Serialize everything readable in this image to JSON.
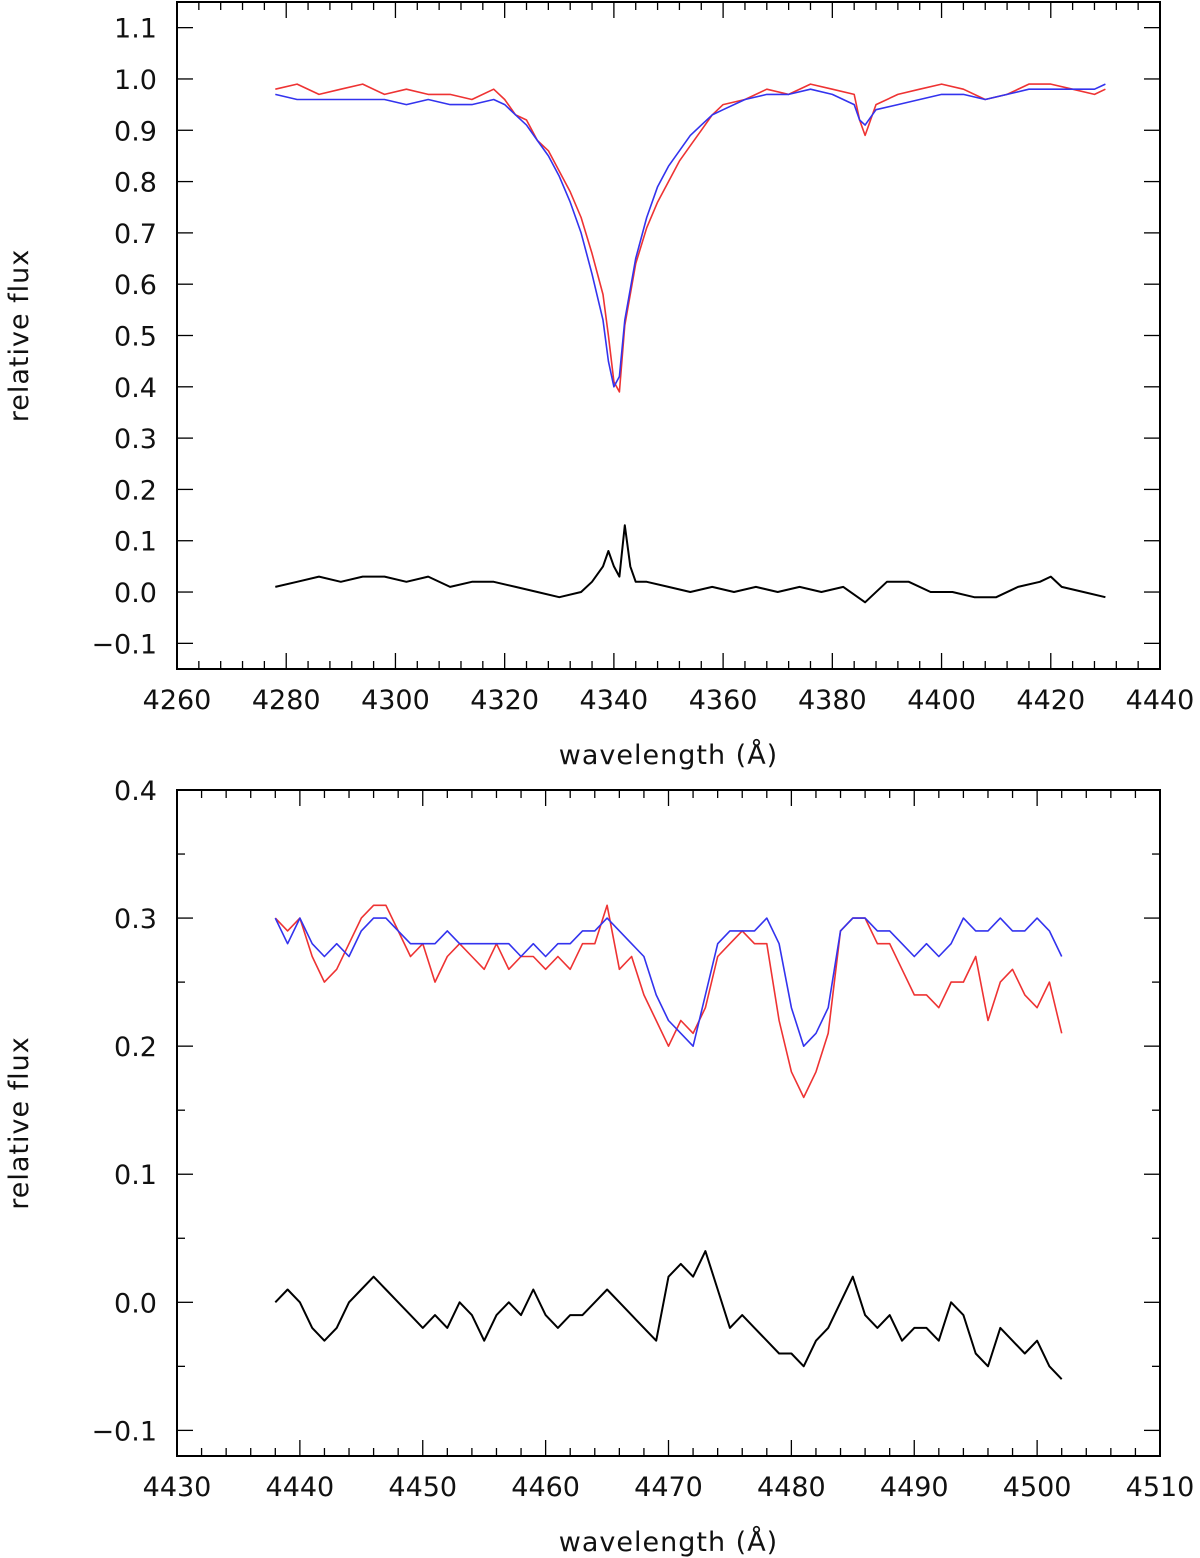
{
  "chart_data": [
    {
      "type": "line",
      "xlabel": "wavelength (Å)",
      "ylabel": "relative flux",
      "xlim": [
        4260,
        4440
      ],
      "ylim": [
        -0.15,
        1.15
      ],
      "xticks": [
        4260,
        4280,
        4300,
        4320,
        4340,
        4360,
        4380,
        4400,
        4420,
        4440
      ],
      "yticks": [
        -0.1,
        0.0,
        0.1,
        0.2,
        0.3,
        0.4,
        0.5,
        0.6,
        0.7,
        0.8,
        0.9,
        1.0,
        1.1
      ],
      "xtick_labels": [
        "4260",
        "4280",
        "4300",
        "4320",
        "4340",
        "4360",
        "4380",
        "4400",
        "4420",
        "4440"
      ],
      "ytick_labels": [
        "−0.1",
        "0.0",
        "0.1",
        "0.2",
        "0.3",
        "0.4",
        "0.5",
        "0.6",
        "0.7",
        "0.8",
        "0.9",
        "1.0",
        "1.1"
      ],
      "grid": false,
      "series": [
        {
          "color": "#ee3333",
          "x": [
            4278,
            4282,
            4286,
            4290,
            4294,
            4298,
            4302,
            4306,
            4310,
            4314,
            4318,
            4320,
            4322,
            4324,
            4326,
            4328,
            4330,
            4332,
            4334,
            4336,
            4338,
            4339,
            4340,
            4341,
            4342,
            4344,
            4346,
            4348,
            4350,
            4352,
            4354,
            4356,
            4358,
            4360,
            4364,
            4368,
            4372,
            4376,
            4380,
            4384,
            4385,
            4386,
            4388,
            4392,
            4396,
            4400,
            4404,
            4408,
            4412,
            4416,
            4420,
            4424,
            4428,
            4430
          ],
          "y": [
            0.98,
            0.99,
            0.97,
            0.98,
            0.99,
            0.97,
            0.98,
            0.97,
            0.97,
            0.96,
            0.98,
            0.96,
            0.93,
            0.92,
            0.88,
            0.86,
            0.82,
            0.78,
            0.73,
            0.66,
            0.58,
            0.5,
            0.41,
            0.39,
            0.52,
            0.64,
            0.71,
            0.76,
            0.8,
            0.84,
            0.87,
            0.9,
            0.93,
            0.95,
            0.96,
            0.98,
            0.97,
            0.99,
            0.98,
            0.97,
            0.92,
            0.89,
            0.95,
            0.97,
            0.98,
            0.99,
            0.98,
            0.96,
            0.97,
            0.99,
            0.99,
            0.98,
            0.97,
            0.98
          ]
        },
        {
          "color": "#3333ee",
          "x": [
            4278,
            4282,
            4286,
            4290,
            4294,
            4298,
            4302,
            4306,
            4310,
            4314,
            4318,
            4320,
            4322,
            4324,
            4326,
            4328,
            4330,
            4332,
            4334,
            4336,
            4338,
            4339,
            4340,
            4341,
            4342,
            4344,
            4346,
            4348,
            4350,
            4352,
            4354,
            4356,
            4358,
            4360,
            4364,
            4368,
            4372,
            4376,
            4380,
            4384,
            4385,
            4386,
            4388,
            4392,
            4396,
            4400,
            4404,
            4408,
            4412,
            4416,
            4420,
            4424,
            4428,
            4430
          ],
          "y": [
            0.97,
            0.96,
            0.96,
            0.96,
            0.96,
            0.96,
            0.95,
            0.96,
            0.95,
            0.95,
            0.96,
            0.95,
            0.93,
            0.91,
            0.88,
            0.85,
            0.81,
            0.76,
            0.7,
            0.62,
            0.53,
            0.45,
            0.4,
            0.42,
            0.53,
            0.65,
            0.73,
            0.79,
            0.83,
            0.86,
            0.89,
            0.91,
            0.93,
            0.94,
            0.96,
            0.97,
            0.97,
            0.98,
            0.97,
            0.95,
            0.92,
            0.91,
            0.94,
            0.95,
            0.96,
            0.97,
            0.97,
            0.96,
            0.97,
            0.98,
            0.98,
            0.98,
            0.98,
            0.99
          ]
        },
        {
          "color": "#000000",
          "x": [
            4278,
            4282,
            4286,
            4290,
            4294,
            4298,
            4302,
            4306,
            4310,
            4314,
            4318,
            4322,
            4326,
            4330,
            4334,
            4336,
            4338,
            4339,
            4340,
            4341,
            4342,
            4343,
            4344,
            4346,
            4350,
            4354,
            4358,
            4362,
            4366,
            4370,
            4374,
            4378,
            4382,
            4386,
            4390,
            4394,
            4398,
            4402,
            4406,
            4410,
            4414,
            4418,
            4420,
            4422,
            4426,
            4430
          ],
          "y": [
            0.01,
            0.02,
            0.03,
            0.02,
            0.03,
            0.03,
            0.02,
            0.03,
            0.01,
            0.02,
            0.02,
            0.01,
            0.0,
            -0.01,
            0.0,
            0.02,
            0.05,
            0.08,
            0.05,
            0.03,
            0.13,
            0.05,
            0.02,
            0.02,
            0.01,
            0.0,
            0.01,
            0.0,
            0.01,
            0.0,
            0.01,
            0.0,
            0.01,
            -0.02,
            0.02,
            0.02,
            0.0,
            0.0,
            -0.01,
            -0.01,
            0.01,
            0.02,
            0.03,
            0.01,
            0.0,
            -0.01
          ]
        }
      ]
    },
    {
      "type": "line",
      "xlabel": "wavelength (Å)",
      "ylabel": "relative flux",
      "xlim": [
        4430,
        4510
      ],
      "ylim": [
        -0.12,
        0.4
      ],
      "xticks": [
        4430,
        4440,
        4450,
        4460,
        4470,
        4480,
        4490,
        4500,
        4510
      ],
      "yticks": [
        -0.1,
        0.0,
        0.1,
        0.2,
        0.3,
        0.4
      ],
      "xtick_labels": [
        "4430",
        "4440",
        "4450",
        "4460",
        "4470",
        "4480",
        "4490",
        "4500",
        "4510"
      ],
      "ytick_labels": [
        "−0.1",
        "0.0",
        "0.1",
        "0.2",
        "0.3",
        "0.4"
      ],
      "grid": false,
      "series": [
        {
          "color": "#ee3333",
          "x": [
            4438,
            4439,
            4440,
            4441,
            4442,
            4443,
            4444,
            4445,
            4446,
            4447,
            4448,
            4449,
            4450,
            4451,
            4452,
            4453,
            4454,
            4455,
            4456,
            4457,
            4458,
            4459,
            4460,
            4461,
            4462,
            4463,
            4464,
            4465,
            4466,
            4467,
            4468,
            4469,
            4470,
            4471,
            4472,
            4473,
            4474,
            4475,
            4476,
            4477,
            4478,
            4479,
            4480,
            4481,
            4482,
            4483,
            4484,
            4485,
            4486,
            4487,
            4488,
            4489,
            4490,
            4491,
            4492,
            4493,
            4494,
            4495,
            4496,
            4497,
            4498,
            4499,
            4500,
            4501,
            4502
          ],
          "y": [
            0.3,
            0.29,
            0.3,
            0.27,
            0.25,
            0.26,
            0.28,
            0.3,
            0.31,
            0.31,
            0.29,
            0.27,
            0.28,
            0.25,
            0.27,
            0.28,
            0.27,
            0.26,
            0.28,
            0.26,
            0.27,
            0.27,
            0.26,
            0.27,
            0.26,
            0.28,
            0.28,
            0.31,
            0.26,
            0.27,
            0.24,
            0.22,
            0.2,
            0.22,
            0.21,
            0.23,
            0.27,
            0.28,
            0.29,
            0.28,
            0.28,
            0.22,
            0.18,
            0.16,
            0.18,
            0.21,
            0.29,
            0.3,
            0.3,
            0.28,
            0.28,
            0.26,
            0.24,
            0.24,
            0.23,
            0.25,
            0.25,
            0.27,
            0.22,
            0.25,
            0.26,
            0.24,
            0.23,
            0.25,
            0.21
          ]
        },
        {
          "color": "#3333ee",
          "x": [
            4438,
            4439,
            4440,
            4441,
            4442,
            4443,
            4444,
            4445,
            4446,
            4447,
            4448,
            4449,
            4450,
            4451,
            4452,
            4453,
            4454,
            4455,
            4456,
            4457,
            4458,
            4459,
            4460,
            4461,
            4462,
            4463,
            4464,
            4465,
            4466,
            4467,
            4468,
            4469,
            4470,
            4471,
            4472,
            4473,
            4474,
            4475,
            4476,
            4477,
            4478,
            4479,
            4480,
            4481,
            4482,
            4483,
            4484,
            4485,
            4486,
            4487,
            4488,
            4489,
            4490,
            4491,
            4492,
            4493,
            4494,
            4495,
            4496,
            4497,
            4498,
            4499,
            4500,
            4501,
            4502
          ],
          "y": [
            0.3,
            0.28,
            0.3,
            0.28,
            0.27,
            0.28,
            0.27,
            0.29,
            0.3,
            0.3,
            0.29,
            0.28,
            0.28,
            0.28,
            0.29,
            0.28,
            0.28,
            0.28,
            0.28,
            0.28,
            0.27,
            0.28,
            0.27,
            0.28,
            0.28,
            0.29,
            0.29,
            0.3,
            0.29,
            0.28,
            0.27,
            0.24,
            0.22,
            0.21,
            0.2,
            0.24,
            0.28,
            0.29,
            0.29,
            0.29,
            0.3,
            0.28,
            0.23,
            0.2,
            0.21,
            0.23,
            0.29,
            0.3,
            0.3,
            0.29,
            0.29,
            0.28,
            0.27,
            0.28,
            0.27,
            0.28,
            0.3,
            0.29,
            0.29,
            0.3,
            0.29,
            0.29,
            0.3,
            0.29,
            0.27
          ]
        },
        {
          "color": "#000000",
          "x": [
            4438,
            4439,
            4440,
            4441,
            4442,
            4443,
            4444,
            4445,
            4446,
            4447,
            4448,
            4449,
            4450,
            4451,
            4452,
            4453,
            4454,
            4455,
            4456,
            4457,
            4458,
            4459,
            4460,
            4461,
            4462,
            4463,
            4464,
            4465,
            4466,
            4467,
            4468,
            4469,
            4470,
            4471,
            4472,
            4473,
            4474,
            4475,
            4476,
            4477,
            4478,
            4479,
            4480,
            4481,
            4482,
            4483,
            4484,
            4485,
            4486,
            4487,
            4488,
            4489,
            4490,
            4491,
            4492,
            4493,
            4494,
            4495,
            4496,
            4497,
            4498,
            4499,
            4500,
            4501,
            4502
          ],
          "y": [
            0.0,
            0.01,
            0.0,
            -0.02,
            -0.03,
            -0.02,
            0.0,
            0.01,
            0.02,
            0.01,
            0.0,
            -0.01,
            -0.02,
            -0.01,
            -0.02,
            0.0,
            -0.01,
            -0.03,
            -0.01,
            0.0,
            -0.01,
            0.01,
            -0.01,
            -0.02,
            -0.01,
            -0.01,
            0.0,
            0.01,
            0.0,
            -0.01,
            -0.02,
            -0.03,
            0.02,
            0.03,
            0.02,
            0.04,
            0.01,
            -0.02,
            -0.01,
            -0.02,
            -0.03,
            -0.04,
            -0.04,
            -0.05,
            -0.03,
            -0.02,
            0.0,
            0.02,
            -0.01,
            -0.02,
            -0.01,
            -0.03,
            -0.02,
            -0.02,
            -0.03,
            0.0,
            -0.01,
            -0.04,
            -0.05,
            -0.02,
            -0.03,
            -0.04,
            -0.03,
            -0.05,
            -0.06
          ]
        }
      ]
    }
  ]
}
